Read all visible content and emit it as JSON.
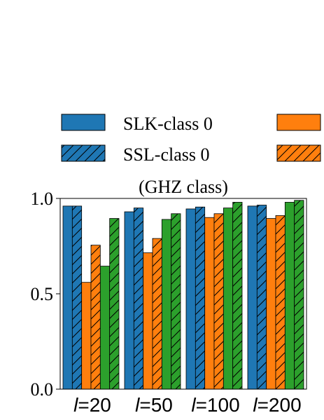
{
  "chart_data": {
    "type": "bar",
    "title": "(GHZ class)",
    "xlabel": "",
    "ylabel": "",
    "ylim": [
      0,
      1.0
    ],
    "yticks": [
      "0.0",
      "0.5",
      "1.0"
    ],
    "categories": [
      "l=20",
      "l=50",
      "l=100",
      "l=200"
    ],
    "category_parts": [
      {
        "var": "l",
        "rest": "=20"
      },
      {
        "var": "l",
        "rest": "=50"
      },
      {
        "var": "l",
        "rest": "=100"
      },
      {
        "var": "l",
        "rest": "=200"
      }
    ],
    "series": [
      {
        "name": "SLK-class 0",
        "color": "#1f77b4",
        "hatch": false,
        "values": [
          0.96,
          0.93,
          0.945,
          0.96
        ]
      },
      {
        "name": "SSL-class 0",
        "color": "#1f77b4",
        "hatch": true,
        "values": [
          0.96,
          0.95,
          0.955,
          0.965
        ]
      },
      {
        "color": "#ff7f0e",
        "hatch": false,
        "values": [
          0.56,
          0.715,
          0.9,
          0.895
        ]
      },
      {
        "color": "#ff7f0e",
        "hatch": true,
        "values": [
          0.755,
          0.79,
          0.92,
          0.91
        ]
      },
      {
        "color": "#2ca02c",
        "hatch": false,
        "values": [
          0.645,
          0.89,
          0.95,
          0.98
        ]
      },
      {
        "color": "#2ca02c",
        "hatch": true,
        "values": [
          0.895,
          0.92,
          0.98,
          0.99
        ]
      }
    ],
    "legend": {
      "placement": "top",
      "entries": [
        {
          "label": "SLK-class 0",
          "color": "#1f77b4",
          "hatch": false
        },
        {
          "label": "SSL-class 0",
          "color": "#1f77b4",
          "hatch": true
        },
        {
          "color": "#ff7f0e",
          "hatch": false
        },
        {
          "color": "#ff7f0e",
          "hatch": true
        }
      ]
    },
    "grid": false
  }
}
